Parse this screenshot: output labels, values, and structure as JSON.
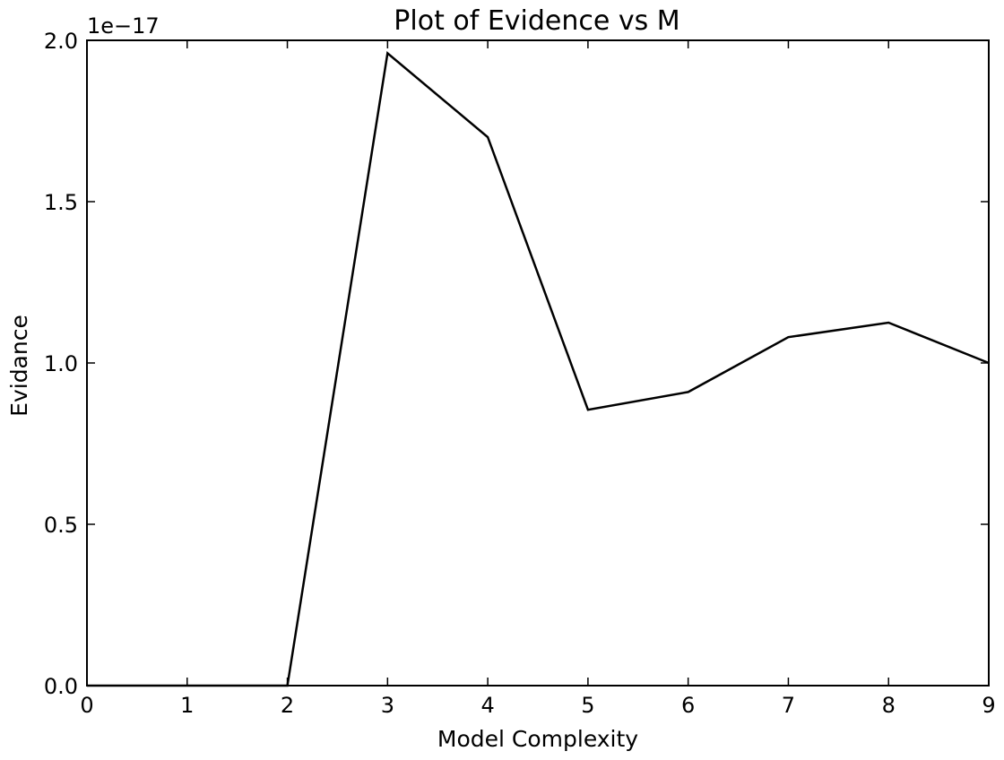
{
  "chart_data": {
    "type": "line",
    "title": "Plot of Evidence vs M",
    "xlabel": "Model Complexity",
    "ylabel": "Evidance",
    "y_offset_label": "1e−17",
    "xlim": [
      0,
      9
    ],
    "ylim": [
      0.0,
      2.0
    ],
    "x_ticks": [
      0,
      1,
      2,
      3,
      4,
      5,
      6,
      7,
      8,
      9
    ],
    "x_tick_labels": [
      "0",
      "1",
      "2",
      "3",
      "4",
      "5",
      "6",
      "7",
      "8",
      "9"
    ],
    "y_ticks": [
      0.0,
      0.5,
      1.0,
      1.5,
      2.0
    ],
    "y_tick_labels": [
      "0.0",
      "0.5",
      "1.0",
      "1.5",
      "2.0"
    ],
    "grid": false,
    "series": [
      {
        "color": "#000000",
        "x": [
          0,
          1,
          2,
          3,
          4,
          5,
          6,
          7,
          8,
          9
        ],
        "y": [
          0.0,
          0.0,
          0.0,
          1.96,
          1.7,
          0.855,
          0.91,
          1.08,
          1.125,
          1.0
        ]
      }
    ]
  }
}
